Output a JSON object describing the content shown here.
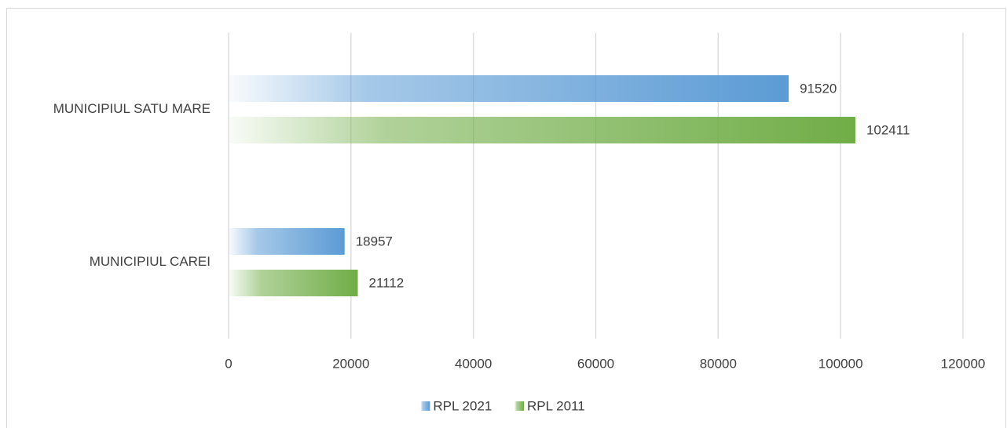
{
  "chart_data": {
    "type": "hbar",
    "categories": [
      "MUNICIPIUL SATU MARE",
      "MUNICIPIUL CAREI"
    ],
    "series": [
      {
        "name": "RPL 2021",
        "color": "#5b9bd5",
        "values": [
          91520,
          18957
        ]
      },
      {
        "name": "RPL 2011",
        "color": "#70ad47",
        "values": [
          102411,
          21112
        ]
      }
    ],
    "xlim": [
      0,
      120000
    ],
    "xticks": [
      0,
      20000,
      40000,
      60000,
      80000,
      100000,
      120000
    ],
    "grid": true,
    "legend": "bottom"
  }
}
